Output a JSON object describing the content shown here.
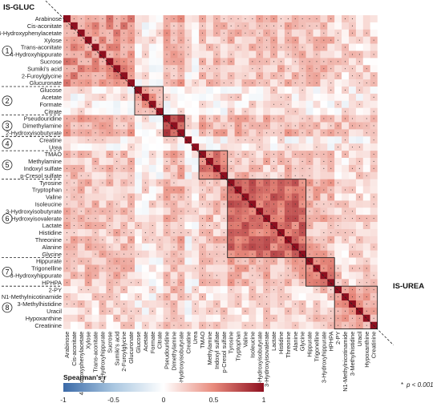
{
  "corner_labels": {
    "top_left": "IS-GLUC",
    "bottom_right": "IS-UREA"
  },
  "note": {
    "star": "*",
    "text": "p < 0.001"
  },
  "colorbar": {
    "title": "Spearman's r",
    "ticks": [
      "-1",
      "-0.5",
      "0",
      "0.5",
      "1"
    ],
    "tick_values": [
      -1,
      -0.5,
      0,
      0.5,
      1
    ]
  },
  "colors": {
    "negative": "#3b6aa8",
    "neutral": "#ffffff",
    "positive": "#8e0f1f"
  },
  "chart_data": {
    "type": "heatmap",
    "title": "",
    "value_range": [
      -1,
      1
    ],
    "significance_marker": "*",
    "labels": [
      "Arabinose",
      "Cis-aconitate",
      "4-Hydroxyphenylacetate",
      "Xylose",
      "Trans-aconitate",
      "4-Hydroxyhippurate",
      "Sucrose",
      "Sumiki's acid",
      "2-Furoylglycine",
      "Glucuronate",
      "Glucose",
      "Acetate",
      "Formate",
      "Citrate",
      "Pseudouridine",
      "Dimethylamine",
      "2-Hydroxyisobutyrate",
      "Creatine",
      "Urea",
      "TMAO",
      "Methylamine",
      "Indoxyl sulfate",
      "p-Cresol sulfate",
      "Tyrosine",
      "Tryptophan",
      "Valine",
      "Isoleucine",
      "3-Hydroxyisobutyrate",
      "3-Hydroxyisovalerate",
      "Lactate",
      "Histidine",
      "Threonine",
      "Alanine",
      "Glycine",
      "Hippurate",
      "Trigonelline",
      "3-Hydroxyhippurate",
      "HPHPA",
      "2-PY",
      "N1-Methylnicotinamide",
      "3-Methylhistidine",
      "Uracil",
      "Hypoxanthine",
      "Creatinine"
    ],
    "groups": [
      {
        "label": "1",
        "start": 0,
        "end": 9
      },
      {
        "label": "2",
        "start": 10,
        "end": 13
      },
      {
        "label": "3",
        "start": 14,
        "end": 16
      },
      {
        "label": "4",
        "start": 17,
        "end": 18
      },
      {
        "label": "5",
        "start": 19,
        "end": 22
      },
      {
        "label": "6",
        "start": 23,
        "end": 33
      },
      {
        "label": "7",
        "start": 34,
        "end": 37
      },
      {
        "label": "8",
        "start": 38,
        "end": 43
      }
    ],
    "boxes": [
      [
        10,
        13
      ],
      [
        14,
        16
      ],
      [
        19,
        22
      ],
      [
        23,
        33
      ],
      [
        34,
        37
      ],
      [
        38,
        43
      ]
    ],
    "within_group_r": [
      0.45,
      0.4,
      0.7,
      0.05,
      0.55,
      0.6,
      0.55,
      0.35
    ],
    "between_group_r": [
      [
        0.45,
        0.05,
        0.35,
        0.05,
        0.25,
        0.25,
        0.25,
        0.15
      ],
      [
        0.05,
        0.4,
        0.05,
        0.0,
        0.05,
        0.1,
        0.05,
        0.05
      ],
      [
        0.35,
        0.05,
        0.7,
        0.05,
        0.3,
        0.3,
        0.25,
        0.25
      ],
      [
        0.05,
        0.0,
        0.05,
        0.05,
        0.05,
        0.05,
        0.05,
        0.05
      ],
      [
        0.25,
        0.05,
        0.3,
        0.05,
        0.55,
        0.25,
        0.2,
        0.15
      ],
      [
        0.25,
        0.1,
        0.3,
        0.05,
        0.25,
        0.6,
        0.3,
        0.15
      ],
      [
        0.25,
        0.05,
        0.25,
        0.05,
        0.2,
        0.3,
        0.55,
        0.2
      ],
      [
        0.15,
        0.05,
        0.25,
        0.05,
        0.15,
        0.15,
        0.2,
        0.35
      ]
    ],
    "significance_threshold_r": 0.18
  }
}
